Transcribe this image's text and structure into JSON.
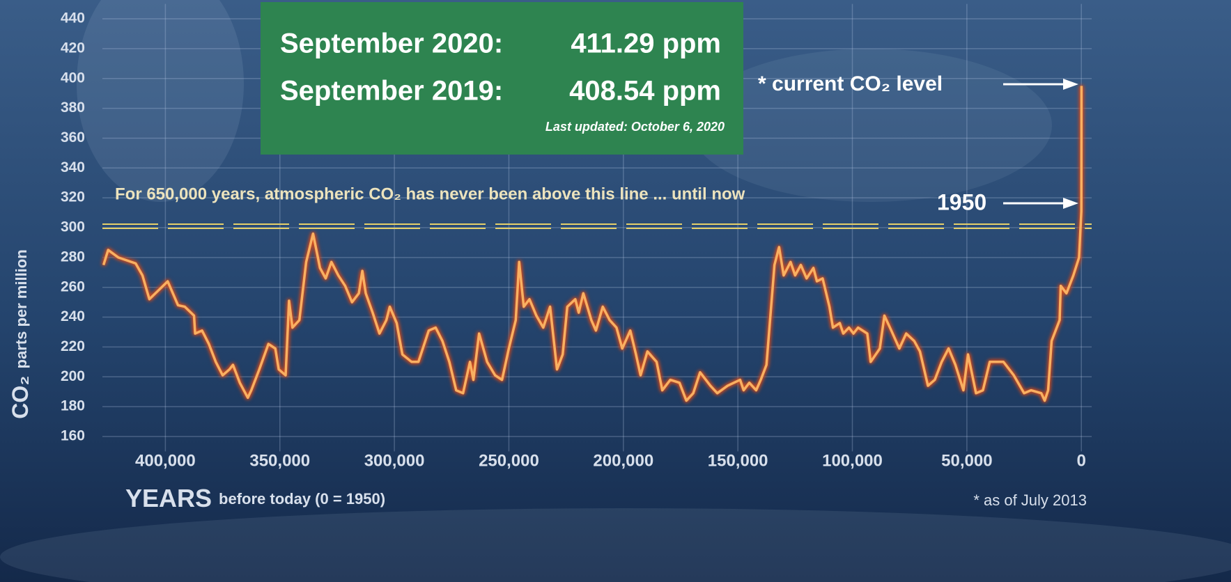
{
  "chart_data": {
    "type": "line",
    "x": [
      427000,
      425000,
      420500,
      413000,
      410000,
      407000,
      401000,
      399000,
      394500,
      391500,
      389500,
      387500,
      387000,
      384000,
      381000,
      378000,
      375000,
      372000,
      370500,
      367500,
      364000,
      362500,
      359000,
      355000,
      352000,
      350500,
      347500,
      346000,
      344500,
      341500,
      338500,
      335500,
      332500,
      330000,
      327500,
      324500,
      321500,
      318500,
      315500,
      314000,
      312500,
      309500,
      306500,
      303500,
      302000,
      299000,
      296500,
      292500,
      289500,
      285000,
      282000,
      279000,
      276000,
      273000,
      270000,
      267000,
      265500,
      263000,
      259500,
      256000,
      253000,
      250000,
      247000,
      245500,
      243500,
      241000,
      238000,
      235000,
      232000,
      229000,
      226500,
      224500,
      221000,
      219500,
      217500,
      214000,
      212000,
      209000,
      206000,
      203000,
      200500,
      197000,
      194500,
      192500,
      189500,
      185500,
      183000,
      179500,
      175500,
      172500,
      169500,
      166500,
      162000,
      159000,
      154500,
      149000,
      147500,
      145000,
      142000,
      140000,
      137500,
      134000,
      132000,
      130000,
      127000,
      125000,
      122500,
      120000,
      117000,
      115500,
      113000,
      110000,
      108500,
      105500,
      104000,
      101500,
      99500,
      97500,
      93500,
      92000,
      88000,
      86000,
      83000,
      79500,
      76500,
      73000,
      70500,
      67000,
      64000,
      61000,
      58000,
      55000,
      51500,
      49500,
      46000,
      43000,
      40000,
      34000,
      29500,
      25000,
      22000,
      17500,
      16000,
      14500,
      13000,
      9500,
      9000,
      6500,
      3500,
      1000,
      0,
      -63
    ],
    "values": [
      275,
      285,
      280,
      276,
      268,
      252,
      261,
      264,
      248,
      247,
      244,
      241,
      229,
      231,
      222,
      210,
      201,
      205,
      208,
      196,
      186,
      191,
      205,
      222,
      219,
      205,
      201,
      251,
      233,
      238,
      277,
      296,
      273,
      266,
      277,
      268,
      261,
      250,
      256,
      271,
      256,
      243,
      229,
      238,
      247,
      236,
      215,
      210,
      210,
      231,
      233,
      224,
      210,
      191,
      189,
      210,
      198,
      229,
      210,
      201,
      198,
      219,
      238,
      277,
      247,
      252,
      241,
      233,
      247,
      205,
      215,
      247,
      252,
      243,
      256,
      238,
      231,
      247,
      238,
      233,
      219,
      231,
      215,
      201,
      217,
      210,
      191,
      198,
      196,
      184,
      189,
      203,
      194,
      189,
      194,
      198,
      191,
      196,
      191,
      198,
      208,
      275,
      287,
      268,
      277,
      268,
      275,
      266,
      273,
      264,
      266,
      247,
      233,
      236,
      229,
      233,
      229,
      233,
      229,
      210,
      219,
      241,
      231,
      219,
      229,
      224,
      217,
      194,
      198,
      210,
      219,
      208,
      191,
      215,
      189,
      191,
      210,
      210,
      201,
      189,
      191,
      189,
      184,
      191,
      224,
      238,
      261,
      256,
      268,
      280,
      311,
      395
    ],
    "color": "#f9b062",
    "xlim": [
      427500,
      -4500
    ],
    "xticks": [
      {
        "value": 400000,
        "label": "400,000"
      },
      {
        "value": 350000,
        "label": "350,000"
      },
      {
        "value": 300000,
        "label": "300,000"
      },
      {
        "value": 250000,
        "label": "250,000"
      },
      {
        "value": 200000,
        "label": "200,000"
      },
      {
        "value": 150000,
        "label": "150,000"
      },
      {
        "value": 100000,
        "label": "100,000"
      },
      {
        "value": 50000,
        "label": "50,000"
      },
      0
    ],
    "ylim": [
      150,
      450
    ],
    "yticks": [
      160,
      180,
      200,
      220,
      240,
      260,
      280,
      300,
      320,
      340,
      360,
      380,
      400,
      420,
      440
    ],
    "grid": true,
    "y_label": "CO₂",
    "y_label_unit": "parts per million",
    "x_label": "YEARS",
    "x_label_note": "before today (0 = 1950)",
    "threshold": 300,
    "threshold_color": "#e6d06a",
    "threshold_note": "For 650,000 years, atmospheric CO₂ has never been above this line ... until now",
    "current_note": "* current CO₂ level",
    "year_note": "1950",
    "footnote": "* as of July 2013"
  },
  "callout": {
    "rows": [
      [
        "September 2020:",
        "411.29 ppm"
      ],
      [
        "September 2019:",
        "408.54 ppm"
      ]
    ],
    "updated": "Last updated: October 6, 2020"
  }
}
